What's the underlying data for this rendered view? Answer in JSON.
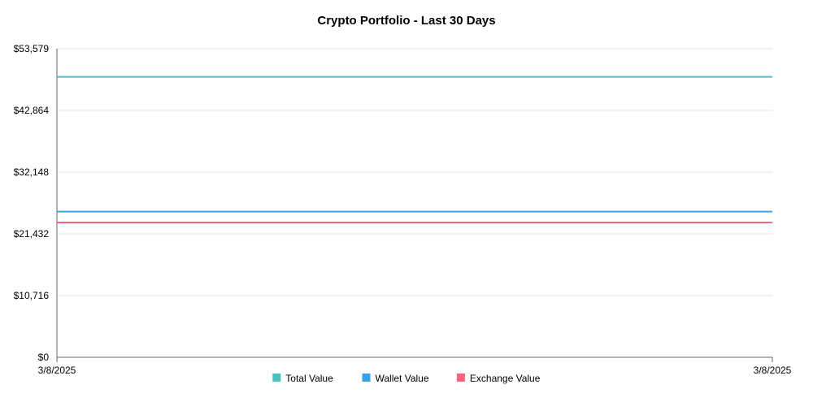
{
  "chart_data": {
    "type": "line",
    "title": "Crypto Portfolio - Last 30 Days",
    "x": [
      "3/8/2025",
      "3/8/2025"
    ],
    "x_tick_labels": [
      "3/8/2025",
      "3/8/2025"
    ],
    "y_tick_labels": [
      "$0",
      "$10,716",
      "$21,432",
      "$32,148",
      "$42,864",
      "$53,579"
    ],
    "ylim": [
      0,
      53579
    ],
    "grid": true,
    "legend_position": "bottom",
    "series": [
      {
        "name": "Total Value",
        "values": [
          48700,
          48700
        ],
        "color": "#4bc0c0"
      },
      {
        "name": "Wallet Value",
        "values": [
          25300,
          25300
        ],
        "color": "#36a2eb"
      },
      {
        "name": "Exchange Value",
        "values": [
          23400,
          23400
        ],
        "color": "#ff6384"
      }
    ],
    "colors": {
      "grid": "#e5e5e5",
      "axis": "#666666"
    }
  }
}
